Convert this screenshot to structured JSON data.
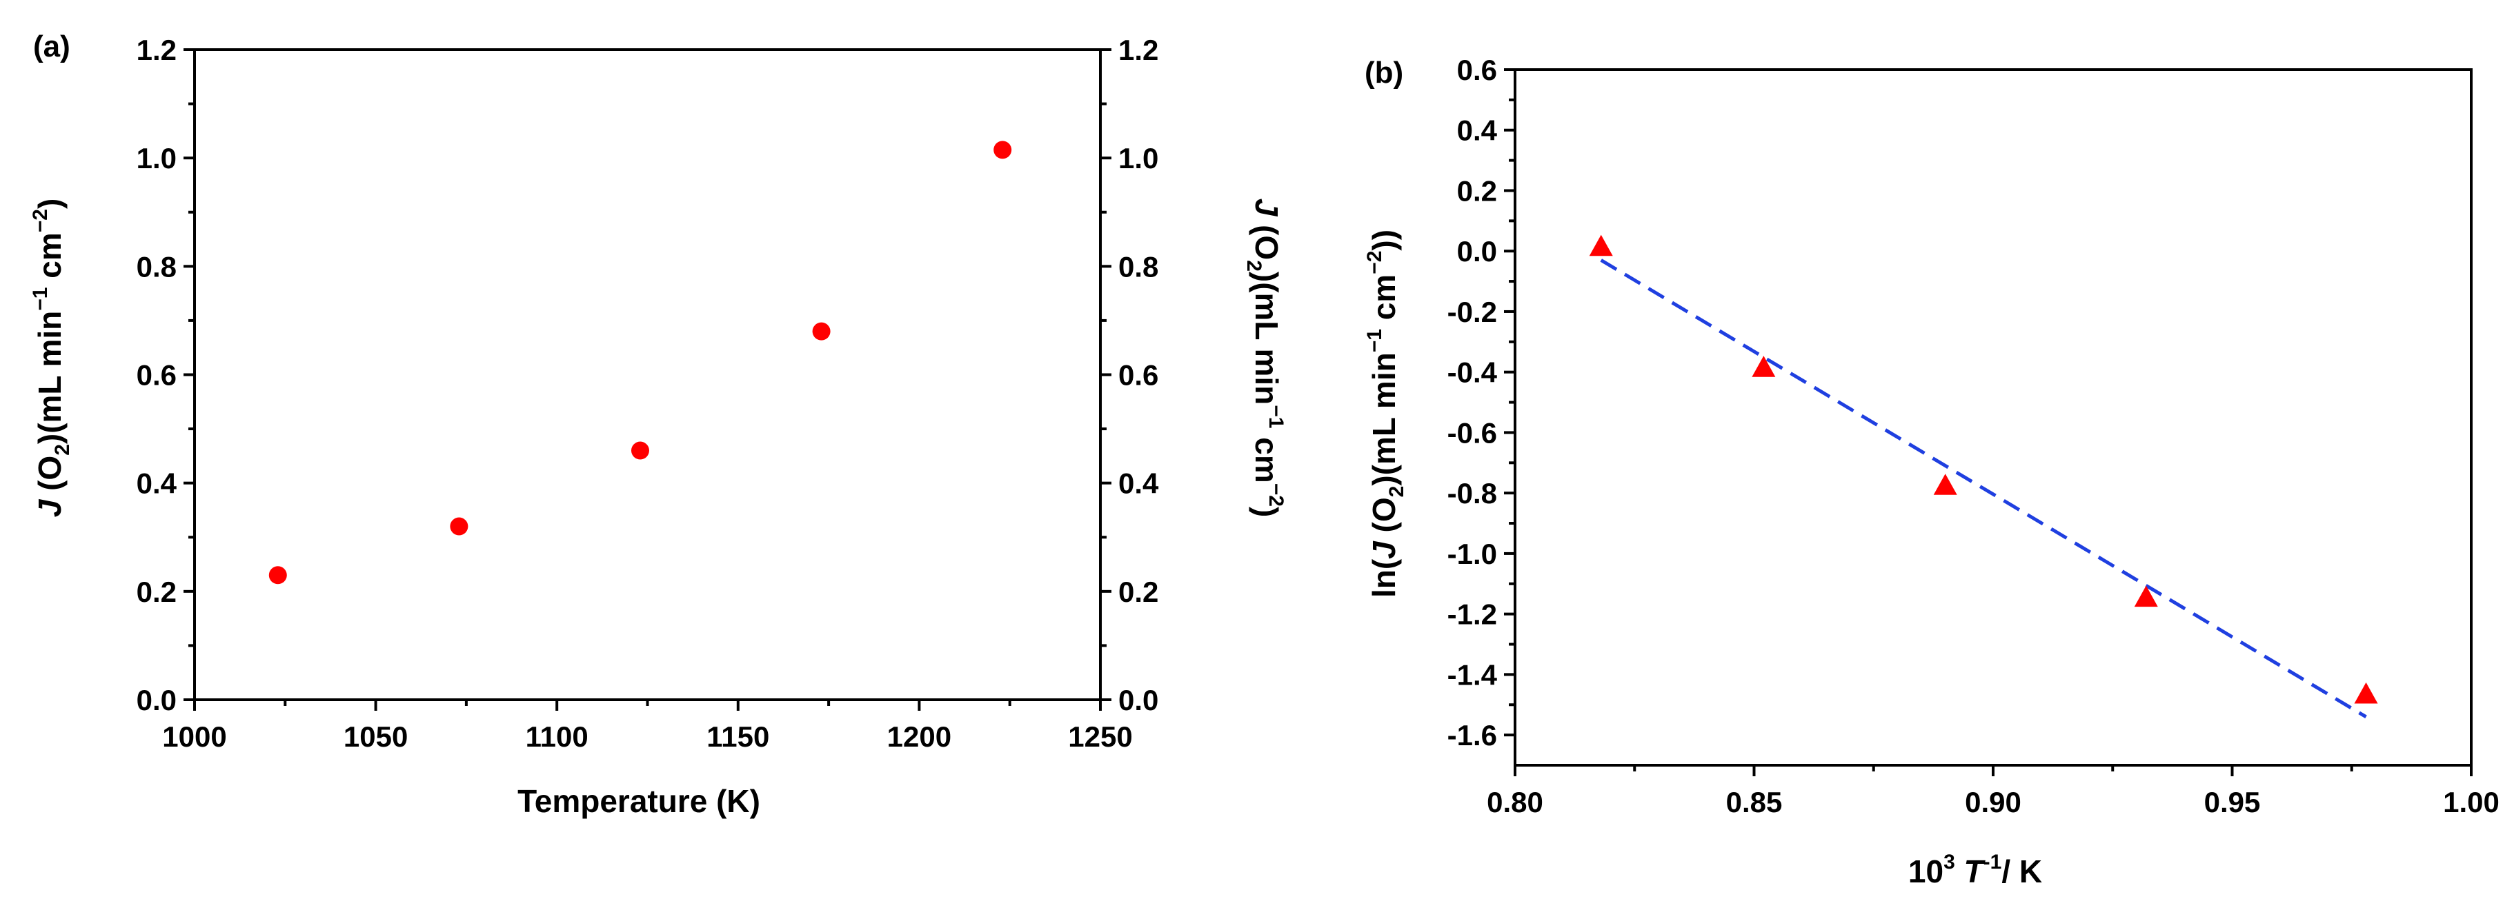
{
  "chart_data": [
    {
      "id": "a",
      "panel_label": "(a)",
      "type": "scatter",
      "title": "",
      "xlabel": "Temperature (K)",
      "ylabel_left": {
        "italic": "J",
        "pre": " (O",
        "sub": "2",
        "mid": ")(mL min",
        "sup1": "−1",
        "mid2": " cm",
        "sup2": "−2",
        "post": ")"
      },
      "ylabel_right": {
        "italic": "J",
        "pre": " (O",
        "sub": "2",
        "mid": ")(mL min",
        "sup1": "−1",
        "mid2": " cm",
        "sup2": "−2",
        "post": ")"
      },
      "xlim": [
        1000,
        1250
      ],
      "ylim": [
        0.0,
        1.2
      ],
      "xticks": [
        1000,
        1050,
        1100,
        1150,
        1200,
        1250
      ],
      "xtick_labels": [
        "1000",
        "1050",
        "1100",
        "1150",
        "1200",
        "1250"
      ],
      "yticks": [
        0.0,
        0.2,
        0.4,
        0.6,
        0.8,
        1.0,
        1.2
      ],
      "ytick_labels": [
        "0.0",
        "0.2",
        "0.4",
        "0.6",
        "0.8",
        "1.0",
        "1.2"
      ],
      "grid": false,
      "series": [
        {
          "name": "J(O2)",
          "marker": "circle",
          "color": "#ff0000",
          "x": [
            1023,
            1073,
            1123,
            1173,
            1223
          ],
          "y": [
            0.23,
            0.32,
            0.46,
            0.68,
            1.015
          ]
        }
      ]
    },
    {
      "id": "b",
      "panel_label": "(b)",
      "type": "scatter",
      "title": "",
      "xlabel": {
        "pre": "10",
        "sup": "3",
        "italic": " T",
        "sup2": "-1",
        "post": "/ K"
      },
      "ylabel": {
        "pre": "ln(",
        "italic": "J",
        "mid": " (O",
        "sub": "2",
        "mid2": ")(mL min",
        "sup1": "−1",
        "mid3": " cm",
        "sup2": "−2",
        "post": "))"
      },
      "xlim": [
        0.8,
        1.0
      ],
      "ylim": [
        -1.7,
        0.6
      ],
      "xticks": [
        0.8,
        0.85,
        0.9,
        0.95,
        1.0
      ],
      "xtick_labels": [
        "0.80",
        "0.85",
        "0.90",
        "0.95",
        "1.00"
      ],
      "yticks": [
        -1.6,
        -1.4,
        -1.2,
        -1.0,
        -0.8,
        -0.6,
        -0.4,
        -0.2,
        0.0,
        0.2,
        0.4,
        0.6
      ],
      "ytick_labels": [
        "-1.6",
        "-1.4",
        "-1.2",
        "-1.0",
        "-0.8",
        "-0.6",
        "-0.4",
        "-0.2",
        "0.0",
        "0.2",
        "0.4",
        "0.6"
      ],
      "grid": false,
      "series": [
        {
          "name": "ln J(O2)",
          "marker": "triangle",
          "color": "#ff0000",
          "x": [
            0.818,
            0.852,
            0.89,
            0.932,
            0.978
          ],
          "y": [
            0.015,
            -0.385,
            -0.775,
            -1.145,
            -1.465
          ]
        }
      ],
      "fit": {
        "name": "linear fit",
        "style": "dashed",
        "color": "#1f3fe0",
        "x": [
          0.818,
          0.978
        ],
        "y": [
          -0.03,
          -1.54
        ]
      }
    }
  ]
}
